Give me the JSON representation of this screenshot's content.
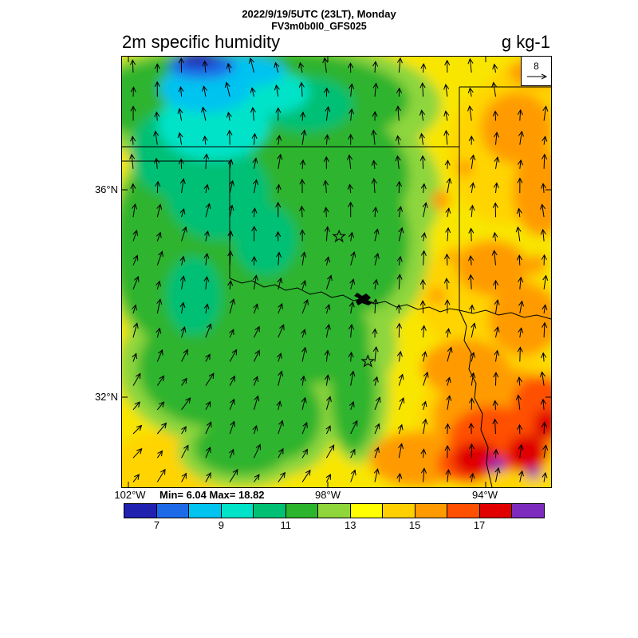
{
  "header": {
    "datetime": "2022/9/19/5UTC (23LT), Monday",
    "model": "FV3m0b0I0_GFS025"
  },
  "titles": {
    "variable": "2m specific humidity",
    "units": "g kg-1"
  },
  "stats": {
    "label": "Min= 6.04 Max= 18.82"
  },
  "ref_vector": {
    "value": "8"
  },
  "axes": {
    "lat": [
      "36°N",
      "32°N"
    ],
    "lon": [
      "102°W",
      "98°W",
      "94°W"
    ]
  },
  "chart_data": {
    "type": "heatmap",
    "variable": "2m specific humidity",
    "units": "g kg-1",
    "datetime": "2022/9/19/5UTC (23LT), Monday",
    "model": "FV3m0b0I0_GFS025",
    "min": 6.04,
    "max": 18.82,
    "lat_ticks": [
      "36°N",
      "32°N"
    ],
    "lon_ticks": [
      "102°W",
      "98°W",
      "94°W"
    ],
    "wind_reference": 8,
    "overlay": "wind vectors",
    "colorbar": {
      "min": 6,
      "max": 19,
      "interval": 1,
      "tick_labels": [
        7,
        9,
        11,
        13,
        15,
        17
      ],
      "colors": [
        "#2121b0",
        "#1d6ae8",
        "#00c3f0",
        "#00e3c8",
        "#00c074",
        "#2cb42c",
        "#8ed63c",
        "#ffff00",
        "#ffcf00",
        "#ff9b00",
        "#ff4f00",
        "#e00000",
        "#7d2bbe"
      ]
    },
    "markers": [
      {
        "fx": 0.506,
        "fy": 0.418
      },
      {
        "fx": 0.573,
        "fy": 0.708
      }
    ]
  }
}
